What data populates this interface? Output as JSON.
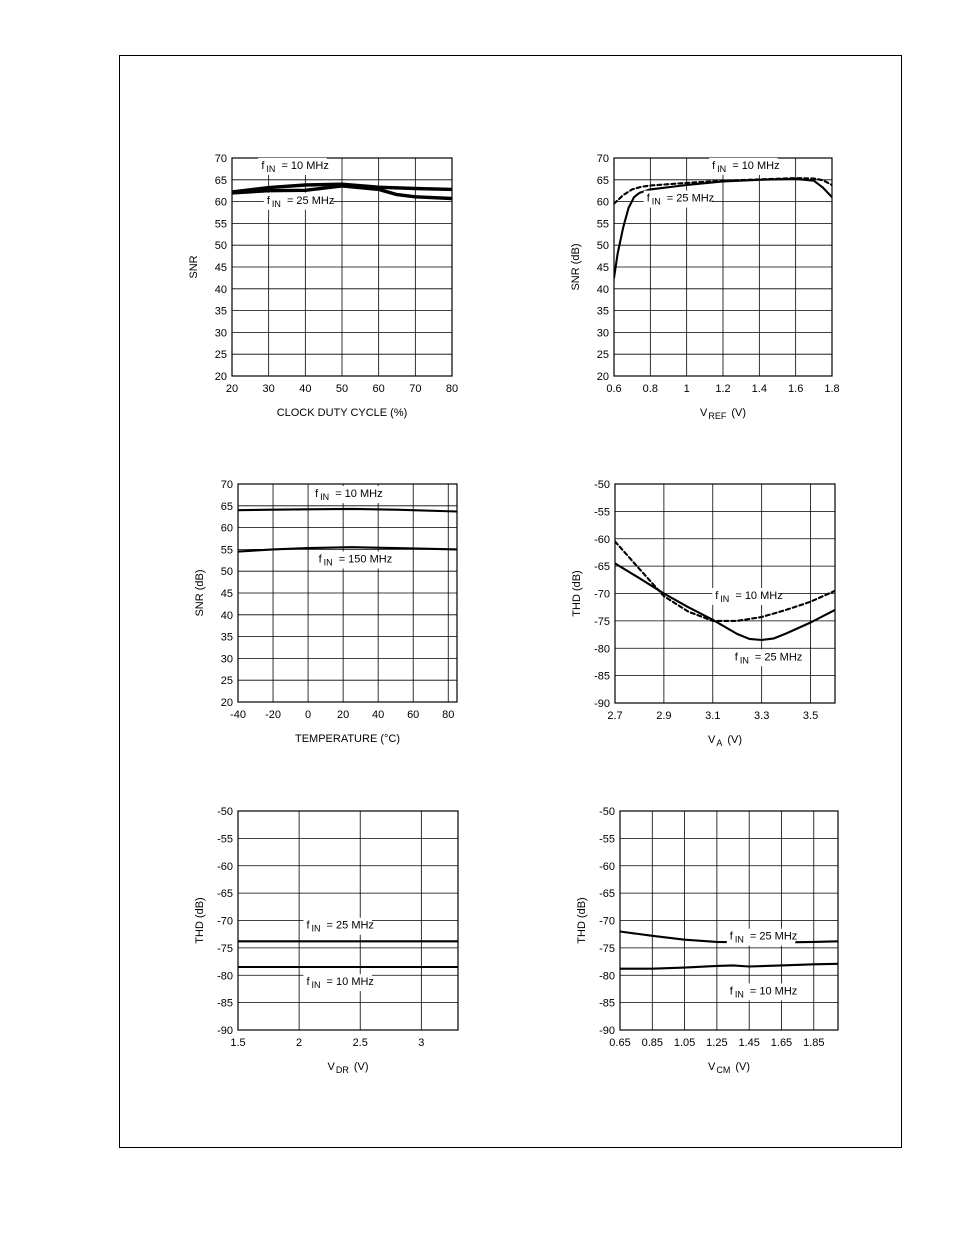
{
  "chart_data": [
    {
      "id": "c1",
      "type": "line",
      "ylabel": "SNR",
      "xlabel": "CLOCK DUTY CYCLE (%)",
      "xlim": [
        20,
        80
      ],
      "ylim": [
        20,
        70
      ],
      "xticks": [
        "20",
        "30",
        "40",
        "50",
        "60",
        "70",
        "80"
      ],
      "yticks": [
        "20",
        "25",
        "30",
        "35",
        "40",
        "45",
        "50",
        "55",
        "60",
        "65",
        "70"
      ],
      "series": [
        {
          "name": "10 MHz",
          "style": "solid-thick",
          "x": [
            20,
            30,
            40,
            50,
            60,
            70,
            80
          ],
          "y": [
            62.2,
            63.2,
            63.8,
            64.0,
            63.3,
            63.0,
            62.8
          ]
        },
        {
          "name": "25 MHz",
          "style": "solid-thick",
          "x": [
            20,
            30,
            40,
            50,
            60,
            65,
            70,
            80
          ],
          "y": [
            62.0,
            62.5,
            62.6,
            63.6,
            62.8,
            61.6,
            61.1,
            60.7
          ]
        }
      ],
      "annotations": [
        {
          "sub": "f",
          "subscript": "IN",
          "text": "= 10 MHz",
          "x": 28,
          "y": 67.5
        },
        {
          "sub": "f",
          "subscript": "IN",
          "text": "= 25 MHz",
          "x": 29.5,
          "y": 59.5
        }
      ]
    },
    {
      "id": "c2",
      "type": "line",
      "ylabel": "SNR (dB)",
      "xlabel_main": "V",
      "xlabel_sub": "REF",
      "xlabel_unit": "(V)",
      "xlim": [
        0.6,
        1.8
      ],
      "ylim": [
        20,
        70
      ],
      "xticks": [
        "0.6",
        "0.8",
        "1",
        "1.2",
        "1.4",
        "1.6",
        "1.8"
      ],
      "yticks": [
        "20",
        "25",
        "30",
        "35",
        "40",
        "45",
        "50",
        "55",
        "60",
        "65",
        "70"
      ],
      "series": [
        {
          "name": "10 MHz",
          "style": "solid",
          "x": [
            0.6,
            0.62,
            0.65,
            0.68,
            0.71,
            0.74,
            0.8,
            1.0,
            1.2,
            1.4,
            1.6,
            1.7,
            1.75,
            1.8
          ],
          "y": [
            42.5,
            48,
            54,
            58.5,
            61,
            62,
            62.8,
            63.8,
            64.6,
            65.0,
            65.2,
            64.8,
            63.2,
            61.0
          ]
        },
        {
          "name": "25 MHz",
          "style": "dashed",
          "x": [
            0.6,
            0.65,
            0.7,
            0.75,
            0.8,
            1.0,
            1.2,
            1.4,
            1.6,
            1.7,
            1.75,
            1.8
          ],
          "y": [
            59.5,
            61.5,
            62.8,
            63.4,
            63.7,
            64.3,
            64.8,
            65.1,
            65.4,
            65.3,
            64.9,
            63.8
          ]
        }
      ],
      "annotations": [
        {
          "sub": "f",
          "subscript": "IN",
          "text": "= 10 MHz",
          "x": 1.14,
          "y": 67.5
        },
        {
          "sub": "f",
          "subscript": "IN",
          "text": "= 25 MHz",
          "x": 0.78,
          "y": 60.0
        }
      ]
    },
    {
      "id": "c3",
      "type": "line",
      "ylabel": "SNR (dB)",
      "xlabel": "TEMPERATURE (°C)",
      "xlim": [
        -40,
        85
      ],
      "ylim": [
        20,
        70
      ],
      "xticks": [
        "-40",
        "-20",
        "0",
        "20",
        "40",
        "60",
        "80"
      ],
      "yticks": [
        "20",
        "25",
        "30",
        "35",
        "40",
        "45",
        "50",
        "55",
        "60",
        "65",
        "70"
      ],
      "series": [
        {
          "name": "10 MHz",
          "style": "solid",
          "x": [
            -40,
            -20,
            0,
            25,
            50,
            85
          ],
          "y": [
            64.0,
            64.1,
            64.2,
            64.3,
            64.1,
            63.7
          ]
        },
        {
          "name": "150 MHz",
          "style": "solid",
          "x": [
            -40,
            -20,
            0,
            25,
            50,
            85
          ],
          "y": [
            54.5,
            55.0,
            55.3,
            55.5,
            55.3,
            55.0
          ]
        }
      ],
      "annotations": [
        {
          "sub": "f",
          "subscript": "IN",
          "text": "= 10 MHz",
          "x": 4,
          "y": 67.0
        },
        {
          "sub": "f",
          "subscript": "IN",
          "text": "= 150 MHz",
          "x": 6,
          "y": 52.0
        }
      ]
    },
    {
      "id": "c4",
      "type": "line",
      "ylabel": "THD (dB)",
      "xlabel_main": "V",
      "xlabel_sub": "A",
      "xlabel_unit": "(V)",
      "xlim": [
        2.7,
        3.6
      ],
      "ylim": [
        -90,
        -50
      ],
      "xticks": [
        "2.7",
        "2.9",
        "3.1",
        "3.3",
        "3.5"
      ],
      "yticks": [
        "-90",
        "-85",
        "-80",
        "-75",
        "-70",
        "-65",
        "-60",
        "-55",
        "-50"
      ],
      "series": [
        {
          "name": "25 MHz",
          "style": "solid",
          "x": [
            2.7,
            2.8,
            2.9,
            3.0,
            3.1,
            3.2,
            3.25,
            3.3,
            3.35,
            3.4,
            3.5,
            3.6
          ],
          "y": [
            -64.5,
            -67.2,
            -70.0,
            -72.5,
            -74.8,
            -77.4,
            -78.3,
            -78.5,
            -78.2,
            -77.3,
            -75.3,
            -73.0
          ]
        },
        {
          "name": "10 MHz",
          "style": "dashed",
          "x": [
            2.7,
            2.75,
            2.8,
            2.9,
            3.0,
            3.1,
            3.2,
            3.3,
            3.4,
            3.5,
            3.6
          ],
          "y": [
            -60.5,
            -63.0,
            -65.5,
            -70.5,
            -73.3,
            -75.0,
            -75.0,
            -74.3,
            -73.0,
            -71.5,
            -69.5
          ]
        }
      ],
      "annotations": [
        {
          "sub": "f",
          "subscript": "IN",
          "text": "= 10 MHz",
          "x": 3.11,
          "y": -71.0
        },
        {
          "sub": "f",
          "subscript": "IN",
          "text": "= 25 MHz",
          "x": 3.19,
          "y": -82.2
        }
      ]
    },
    {
      "id": "c5",
      "type": "line",
      "ylabel": "THD (dB)",
      "xlabel_main": "V",
      "xlabel_sub": "DR",
      "xlabel_unit": "(V)",
      "xlim": [
        1.5,
        3.3
      ],
      "ylim": [
        -90,
        -50
      ],
      "xticks": [
        "1.5",
        "2",
        "2.5",
        "3"
      ],
      "yticks": [
        "-90",
        "-85",
        "-80",
        "-75",
        "-70",
        "-65",
        "-60",
        "-55",
        "-50"
      ],
      "series": [
        {
          "name": "25 MHz",
          "style": "solid",
          "x": [
            1.5,
            3.3
          ],
          "y": [
            -73.8,
            -73.8
          ]
        },
        {
          "name": "10 MHz",
          "style": "solid",
          "x": [
            1.5,
            3.3
          ],
          "y": [
            -78.5,
            -78.5
          ]
        }
      ],
      "annotations": [
        {
          "sub": "f",
          "subscript": "IN",
          "text": "= 25 MHz",
          "x": 2.06,
          "y": -71.5
        },
        {
          "sub": "f",
          "subscript": "IN",
          "text": "= 10 MHz",
          "x": 2.06,
          "y": -81.8
        }
      ]
    },
    {
      "id": "c6",
      "type": "line",
      "ylabel": "THD (dB)",
      "xlabel_main": "V",
      "xlabel_sub": "CM",
      "xlabel_unit": "(V)",
      "xlim": [
        0.65,
        2.0
      ],
      "ylim": [
        -90,
        -50
      ],
      "xticks": [
        "0.65",
        "0.85",
        "1.05",
        "1.25",
        "1.45",
        "1.65",
        "1.85"
      ],
      "yticks": [
        "-90",
        "-85",
        "-80",
        "-75",
        "-70",
        "-65",
        "-60",
        "-55",
        "-50"
      ],
      "series": [
        {
          "name": "25 MHz",
          "style": "solid",
          "x": [
            0.65,
            0.85,
            1.05,
            1.25,
            1.45,
            1.65,
            1.85,
            2.0
          ],
          "y": [
            -72.0,
            -72.8,
            -73.5,
            -73.9,
            -74.0,
            -74.0,
            -73.9,
            -73.8
          ]
        },
        {
          "name": "10 MHz",
          "style": "solid",
          "x": [
            0.65,
            0.85,
            1.05,
            1.25,
            1.35,
            1.45,
            1.65,
            1.85,
            2.0
          ],
          "y": [
            -78.8,
            -78.8,
            -78.6,
            -78.3,
            -78.2,
            -78.4,
            -78.2,
            -78.0,
            -77.9
          ]
        }
      ],
      "annotations": [
        {
          "sub": "f",
          "subscript": "IN",
          "text": "= 25 MHz",
          "x": 1.33,
          "y": -73.5
        },
        {
          "sub": "f",
          "subscript": "IN",
          "text": "= 10 MHz",
          "x": 1.33,
          "y": -83.5
        }
      ]
    }
  ]
}
